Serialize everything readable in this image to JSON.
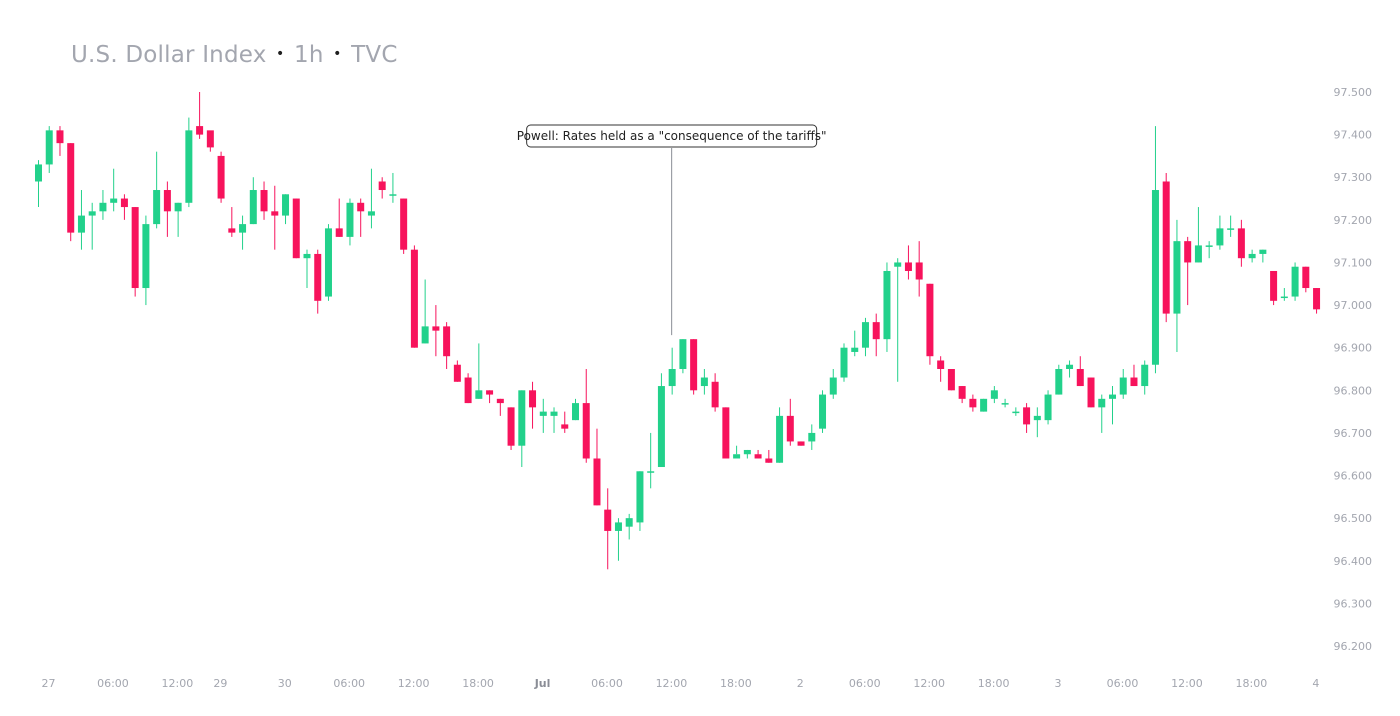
{
  "title": {
    "symbol": "U.S. Dollar Index",
    "interval": "1h",
    "source": "TVC",
    "separator": "•"
  },
  "colors": {
    "up": "#22d18b",
    "down": "#f7135c",
    "text": "#a3a6af",
    "annotation_line": "#8a8d96"
  },
  "chart_data": {
    "type": "candlestick",
    "title": "U.S. Dollar Index · 1h · TVC",
    "ylim": [
      96.17,
      97.55
    ],
    "y_ticks": [
      "97.500",
      "97.400",
      "97.300",
      "97.200",
      "97.100",
      "97.000",
      "96.900",
      "96.800",
      "96.700",
      "96.600",
      "96.500",
      "96.400",
      "96.300",
      "96.200"
    ],
    "x_ticks": [
      {
        "label": "27",
        "bar": 0,
        "bold": false
      },
      {
        "label": "06:00",
        "bar": 6,
        "bold": false
      },
      {
        "label": "12:00",
        "bar": 12,
        "bold": false
      },
      {
        "label": "29",
        "bar": 16,
        "bold": false
      },
      {
        "label": "30",
        "bar": 22,
        "bold": false
      },
      {
        "label": "06:00",
        "bar": 28,
        "bold": false
      },
      {
        "label": "12:00",
        "bar": 34,
        "bold": false
      },
      {
        "label": "18:00",
        "bar": 40,
        "bold": false
      },
      {
        "label": "Jul",
        "bar": 46,
        "bold": true
      },
      {
        "label": "06:00",
        "bar": 52,
        "bold": false
      },
      {
        "label": "12:00",
        "bar": 58,
        "bold": false
      },
      {
        "label": "18:00",
        "bar": 64,
        "bold": false
      },
      {
        "label": "2",
        "bar": 70,
        "bold": false
      },
      {
        "label": "06:00",
        "bar": 76,
        "bold": false
      },
      {
        "label": "12:00",
        "bar": 82,
        "bold": false
      },
      {
        "label": "18:00",
        "bar": 88,
        "bold": false
      },
      {
        "label": "3",
        "bar": 94,
        "bold": false
      },
      {
        "label": "06:00",
        "bar": 100,
        "bold": false
      },
      {
        "label": "12:00",
        "bar": 106,
        "bold": false
      },
      {
        "label": "18:00",
        "bar": 112,
        "bold": false
      },
      {
        "label": "4",
        "bar": 118,
        "bold": false
      }
    ],
    "annotation": {
      "text": "Powell: Rates held as a \"consequence of the tariffs\"",
      "bar": 59,
      "price": 96.92
    },
    "candles": [
      [
        97.29,
        97.34,
        97.23,
        97.33
      ],
      [
        97.33,
        97.42,
        97.31,
        97.41
      ],
      [
        97.41,
        97.42,
        97.35,
        97.38
      ],
      [
        97.38,
        97.38,
        97.15,
        97.17
      ],
      [
        97.17,
        97.27,
        97.13,
        97.21
      ],
      [
        97.21,
        97.24,
        97.13,
        97.22
      ],
      [
        97.22,
        97.27,
        97.2,
        97.24
      ],
      [
        97.24,
        97.32,
        97.22,
        97.25
      ],
      [
        97.25,
        97.26,
        97.2,
        97.23
      ],
      [
        97.23,
        97.23,
        97.02,
        97.04
      ],
      [
        97.04,
        97.21,
        97.0,
        97.19
      ],
      [
        97.19,
        97.36,
        97.18,
        97.27
      ],
      [
        97.27,
        97.29,
        97.16,
        97.22
      ],
      [
        97.22,
        97.24,
        97.16,
        97.24
      ],
      [
        97.24,
        97.44,
        97.23,
        97.41
      ],
      [
        97.42,
        97.5,
        97.39,
        97.4
      ],
      [
        97.41,
        97.4,
        97.36,
        97.37
      ],
      [
        97.35,
        97.36,
        97.24,
        97.25
      ],
      [
        97.18,
        97.23,
        97.16,
        97.17
      ],
      [
        97.17,
        97.21,
        97.13,
        97.19
      ],
      [
        97.19,
        97.3,
        97.19,
        97.27
      ],
      [
        97.27,
        97.29,
        97.2,
        97.22
      ],
      [
        97.22,
        97.28,
        97.13,
        97.21
      ],
      [
        97.21,
        97.26,
        97.19,
        97.26
      ],
      [
        97.25,
        97.25,
        97.11,
        97.11
      ],
      [
        97.11,
        97.13,
        97.04,
        97.12
      ],
      [
        97.12,
        97.13,
        96.98,
        97.01
      ],
      [
        97.02,
        97.19,
        97.01,
        97.18
      ],
      [
        97.18,
        97.25,
        97.16,
        97.16
      ],
      [
        97.16,
        97.25,
        97.14,
        97.24
      ],
      [
        97.24,
        97.25,
        97.16,
        97.22
      ],
      [
        97.21,
        97.32,
        97.18,
        97.22
      ],
      [
        97.29,
        97.3,
        97.25,
        97.27
      ],
      [
        97.26,
        97.31,
        97.24,
        97.26
      ],
      [
        97.25,
        97.25,
        97.12,
        97.13
      ],
      [
        97.13,
        97.14,
        96.9,
        96.9
      ],
      [
        96.91,
        97.06,
        96.91,
        96.95
      ],
      [
        96.95,
        97.0,
        96.88,
        96.94
      ],
      [
        96.95,
        96.96,
        96.85,
        96.88
      ],
      [
        96.86,
        96.87,
        96.82,
        96.82
      ],
      [
        96.83,
        96.84,
        96.77,
        96.77
      ],
      [
        96.78,
        96.91,
        96.78,
        96.8
      ],
      [
        96.8,
        96.8,
        96.77,
        96.79
      ],
      [
        96.78,
        96.78,
        96.74,
        96.77
      ],
      [
        96.76,
        96.76,
        96.66,
        96.67
      ],
      [
        96.67,
        96.8,
        96.62,
        96.8
      ],
      [
        96.8,
        96.82,
        96.71,
        96.76
      ],
      [
        96.74,
        96.78,
        96.7,
        96.75
      ],
      [
        96.74,
        96.76,
        96.7,
        96.75
      ],
      [
        96.72,
        96.75,
        96.7,
        96.71
      ],
      [
        96.73,
        96.78,
        96.73,
        96.77
      ],
      [
        96.77,
        96.85,
        96.63,
        96.64
      ],
      [
        96.64,
        96.71,
        96.53,
        96.53
      ],
      [
        96.52,
        96.57,
        96.38,
        96.47
      ],
      [
        96.47,
        96.5,
        96.4,
        96.49
      ],
      [
        96.48,
        96.51,
        96.45,
        96.5
      ],
      [
        96.49,
        96.61,
        96.47,
        96.61
      ],
      [
        96.61,
        96.7,
        96.57,
        96.61
      ],
      [
        96.62,
        96.84,
        96.62,
        96.81
      ],
      [
        96.81,
        96.9,
        96.79,
        96.85
      ],
      [
        96.85,
        96.92,
        96.84,
        96.92
      ],
      [
        96.92,
        96.92,
        96.79,
        96.8
      ],
      [
        96.81,
        96.85,
        96.79,
        96.83
      ],
      [
        96.82,
        96.84,
        96.75,
        96.76
      ],
      [
        96.76,
        96.76,
        96.64,
        96.64
      ],
      [
        96.64,
        96.67,
        96.65,
        96.65
      ],
      [
        96.65,
        96.66,
        96.64,
        96.66
      ],
      [
        96.65,
        96.66,
        96.64,
        96.64
      ],
      [
        96.64,
        96.66,
        96.63,
        96.63
      ],
      [
        96.63,
        96.76,
        96.63,
        96.74
      ],
      [
        96.74,
        96.78,
        96.67,
        96.68
      ],
      [
        96.68,
        96.68,
        96.67,
        96.67
      ],
      [
        96.68,
        96.72,
        96.66,
        96.7
      ],
      [
        96.71,
        96.8,
        96.7,
        96.79
      ],
      [
        96.79,
        96.85,
        96.78,
        96.83
      ],
      [
        96.83,
        96.91,
        96.82,
        96.9
      ],
      [
        96.89,
        96.94,
        96.88,
        96.9
      ],
      [
        96.9,
        96.97,
        96.88,
        96.96
      ],
      [
        96.96,
        96.98,
        96.88,
        96.92
      ],
      [
        96.92,
        97.1,
        96.89,
        97.08
      ],
      [
        97.09,
        97.11,
        96.82,
        97.1
      ],
      [
        97.1,
        97.14,
        97.06,
        97.08
      ],
      [
        97.1,
        97.15,
        97.02,
        97.06
      ],
      [
        97.05,
        97.05,
        96.86,
        96.88
      ],
      [
        96.87,
        96.88,
        96.82,
        96.85
      ],
      [
        96.85,
        96.85,
        96.8,
        96.8
      ],
      [
        96.81,
        96.81,
        96.77,
        96.78
      ],
      [
        96.78,
        96.79,
        96.75,
        96.76
      ],
      [
        96.75,
        96.78,
        96.75,
        96.78
      ],
      [
        96.78,
        96.81,
        96.77,
        96.8
      ],
      [
        96.77,
        96.78,
        96.76,
        96.77
      ],
      [
        96.75,
        96.76,
        96.74,
        96.75
      ],
      [
        96.76,
        96.77,
        96.7,
        96.72
      ],
      [
        96.73,
        96.76,
        96.69,
        96.74
      ],
      [
        96.73,
        96.8,
        96.72,
        96.79
      ],
      [
        96.79,
        96.86,
        96.79,
        96.85
      ],
      [
        96.85,
        96.87,
        96.83,
        96.86
      ],
      [
        96.85,
        96.88,
        96.81,
        96.81
      ],
      [
        96.83,
        96.83,
        96.76,
        96.76
      ],
      [
        96.76,
        96.79,
        96.7,
        96.78
      ],
      [
        96.78,
        96.81,
        96.72,
        96.79
      ],
      [
        96.79,
        96.85,
        96.78,
        96.83
      ],
      [
        96.83,
        96.86,
        96.81,
        96.81
      ],
      [
        96.81,
        96.87,
        96.79,
        96.86
      ],
      [
        96.86,
        97.42,
        96.84,
        97.27
      ],
      [
        97.29,
        97.31,
        96.96,
        96.98
      ],
      [
        96.98,
        97.2,
        96.89,
        97.15
      ],
      [
        97.15,
        97.16,
        97.0,
        97.1
      ],
      [
        97.1,
        97.23,
        97.1,
        97.14
      ],
      [
        97.14,
        97.15,
        97.11,
        97.14
      ],
      [
        97.14,
        97.21,
        97.13,
        97.18
      ],
      [
        97.18,
        97.21,
        97.16,
        97.18
      ],
      [
        97.18,
        97.2,
        97.09,
        97.11
      ],
      [
        97.11,
        97.13,
        97.1,
        97.12
      ],
      [
        97.12,
        97.13,
        97.1,
        97.13
      ],
      [
        97.08,
        97.08,
        97.0,
        97.01
      ],
      [
        97.02,
        97.04,
        97.01,
        97.02
      ],
      [
        97.02,
        97.1,
        97.01,
        97.09
      ],
      [
        97.09,
        97.09,
        97.03,
        97.04
      ],
      [
        97.04,
        97.04,
        96.98,
        96.99
      ]
    ]
  }
}
